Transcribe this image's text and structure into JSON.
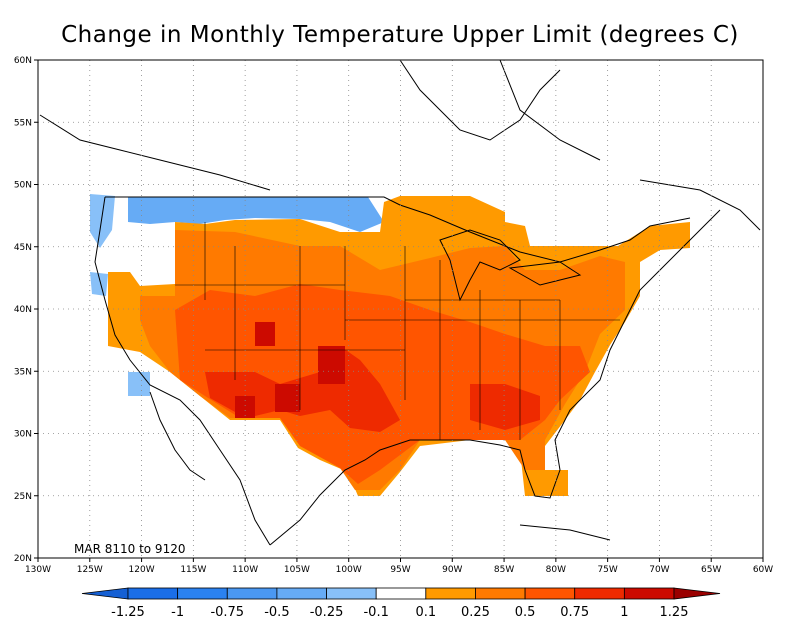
{
  "title": "Change in Monthly Temperature Upper Limit (degrees C)",
  "annotation": "MAR  8110  to  9120",
  "map": {
    "lon_range": [
      -130,
      -60
    ],
    "lat_range": [
      20,
      60
    ],
    "x_ticks": [
      {
        "lon": -130,
        "label": "130W"
      },
      {
        "lon": -125,
        "label": "125W"
      },
      {
        "lon": -120,
        "label": "120W"
      },
      {
        "lon": -115,
        "label": "115W"
      },
      {
        "lon": -110,
        "label": "110W"
      },
      {
        "lon": -105,
        "label": "105W"
      },
      {
        "lon": -100,
        "label": "100W"
      },
      {
        "lon": -95,
        "label": "95W"
      },
      {
        "lon": -90,
        "label": "90W"
      },
      {
        "lon": -85,
        "label": "85W"
      },
      {
        "lon": -80,
        "label": "80W"
      },
      {
        "lon": -75,
        "label": "75W"
      },
      {
        "lon": -70,
        "label": "70W"
      },
      {
        "lon": -65,
        "label": "65W"
      },
      {
        "lon": -60,
        "label": "60W"
      }
    ],
    "y_ticks": [
      {
        "lat": 20,
        "label": "20N"
      },
      {
        "lat": 25,
        "label": "25N"
      },
      {
        "lat": 30,
        "label": "30N"
      },
      {
        "lat": 35,
        "label": "35N"
      },
      {
        "lat": 40,
        "label": "40N"
      },
      {
        "lat": 45,
        "label": "45N"
      },
      {
        "lat": 50,
        "label": "50N"
      },
      {
        "lat": 55,
        "label": "55N"
      },
      {
        "lat": 60,
        "label": "60N"
      }
    ],
    "grid": "dotted"
  },
  "colorbar": {
    "labels": [
      "-1.25",
      "-1",
      "-0.75",
      "-0.5",
      "-0.25",
      "-0.1",
      "0.1",
      "0.25",
      "0.5",
      "0.75",
      "1",
      "1.25"
    ],
    "colors": [
      "#1560d4",
      "#1a6ee8",
      "#2b82f0",
      "#4a98f2",
      "#66abf5",
      "#88c0f8",
      "#ffffff",
      "#ff9a00",
      "#ff7a00",
      "#ff5500",
      "#ee2a00",
      "#cc0a00",
      "#9a0000"
    ]
  },
  "chart_data": {
    "type": "heatmap",
    "title": "Change in Monthly Temperature Upper Limit (degrees C)",
    "x_range": [
      -130,
      -60
    ],
    "y_range": [
      20,
      60
    ],
    "regions": [
      {
        "name": "",
        "lon": [
          -123,
          -115
        ],
        "lat": [
          44,
          49
        ],
        "value": -0.3
      },
      {
        "name": "",
        "lon": [
          -115,
          -97
        ],
        "lat": [
          46,
          49
        ],
        "value": -0.3
      },
      {
        "name": "",
        "lon": [
          -123,
          -118
        ],
        "lat": [
          38,
          44
        ],
        "value": 0.1
      },
      {
        "name": "",
        "lon": [
          -118,
          -110
        ],
        "lat": [
          40,
          47
        ],
        "value": 0.5
      },
      {
        "name": "",
        "lon": [
          -110,
          -96
        ],
        "lat": [
          40,
          46
        ],
        "value": 0.6
      },
      {
        "name": "",
        "lon": [
          -96,
          -82
        ],
        "lat": [
          40,
          49
        ],
        "value": 0.4
      },
      {
        "name": "",
        "lon": [
          -82,
          -70
        ],
        "lat": [
          40,
          46
        ],
        "value": 0.5
      },
      {
        "name": "",
        "lon": [
          -120,
          -103
        ],
        "lat": [
          31,
          40
        ],
        "value": 0.7
      },
      {
        "name": "",
        "lon": [
          -103,
          -93
        ],
        "lat": [
          29,
          37
        ],
        "value": 0.9
      },
      {
        "name": "",
        "lon": [
          -93,
          -80
        ],
        "lat": [
          30,
          37
        ],
        "value": 0.7
      },
      {
        "name": "",
        "lon": [
          -82,
          -80
        ],
        "lat": [
          25,
          30
        ],
        "value": 0.5
      }
    ]
  }
}
